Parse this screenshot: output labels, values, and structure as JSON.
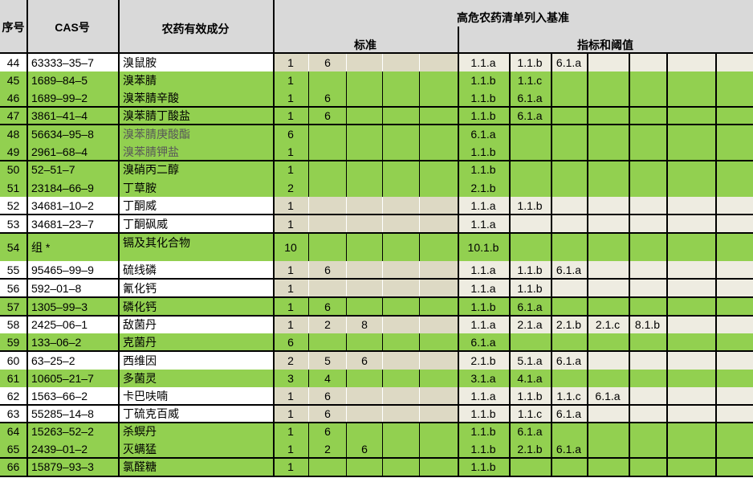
{
  "header": {
    "seq": "序号",
    "cas": "CAS号",
    "name": "农药有效成分",
    "criteria": "高危农药清单列入基准",
    "standards": "标准",
    "indicators": "指标和阈值"
  },
  "colors": {
    "highlight": "#92d050",
    "header": "#d9d9d9",
    "standard_cell": "#ddd9c4",
    "indicator_cell": "#eeece1"
  },
  "rows": [
    {
      "seq": "44",
      "cas": "63333–35–7",
      "name": "溴鼠胺",
      "highlight": false,
      "standards": [
        "1",
        "6",
        "",
        "",
        ""
      ],
      "indicators": [
        "1.1.a",
        "1.1.b",
        "6.1.a",
        "",
        "",
        "",
        ""
      ]
    },
    {
      "seq": "45",
      "cas": "1689–84–5",
      "name": "溴苯腈",
      "highlight": true,
      "standards": [
        "1",
        "",
        "",
        "",
        ""
      ],
      "indicators": [
        "1.1.b",
        "1.1.c",
        "",
        "",
        "",
        "",
        ""
      ]
    },
    {
      "seq": "46",
      "cas": "1689–99–2",
      "name": "溴苯腈辛酸",
      "highlight": true,
      "standards": [
        "1",
        "6",
        "",
        "",
        ""
      ],
      "indicators": [
        "1.1.b",
        "6.1.a",
        "",
        "",
        "",
        "",
        ""
      ]
    },
    {
      "seq": "47",
      "cas": "3861–41–4",
      "name": "溴苯腈丁酸盐",
      "highlight": true,
      "standards": [
        "1",
        "6",
        "",
        "",
        ""
      ],
      "indicators": [
        "1.1.b",
        "6.1.a",
        "",
        "",
        "",
        "",
        ""
      ]
    },
    {
      "seq": "48",
      "cas": "56634–95–8",
      "name": "溴苯腈庚酸酯",
      "highlight": true,
      "standards": [
        "6",
        "",
        "",
        "",
        ""
      ],
      "indicators": [
        "6.1.a",
        "",
        "",
        "",
        "",
        "",
        ""
      ]
    },
    {
      "seq": "49",
      "cas": "2961–68–4",
      "name": "溴苯腈钾盐",
      "highlight": true,
      "standards": [
        "1",
        "",
        "",
        "",
        ""
      ],
      "indicators": [
        "1.1.b",
        "",
        "",
        "",
        "",
        "",
        ""
      ]
    },
    {
      "seq": "50",
      "cas": "52–51–7",
      "name": "溴硝丙二醇",
      "highlight": true,
      "standards": [
        "1",
        "",
        "",
        "",
        ""
      ],
      "indicators": [
        "1.1.b",
        "",
        "",
        "",
        "",
        "",
        ""
      ]
    },
    {
      "seq": "51",
      "cas": "23184–66–9",
      "name": "丁草胺",
      "highlight": true,
      "standards": [
        "2",
        "",
        "",
        "",
        ""
      ],
      "indicators": [
        "2.1.b",
        "",
        "",
        "",
        "",
        "",
        ""
      ]
    },
    {
      "seq": "52",
      "cas": "34681–10–2",
      "name": "丁酮威",
      "highlight": false,
      "standards": [
        "1",
        "",
        "",
        "",
        ""
      ],
      "indicators": [
        "1.1.a",
        "1.1.b",
        "",
        "",
        "",
        "",
        ""
      ]
    },
    {
      "seq": "53",
      "cas": "34681–23–7",
      "name": "丁酮砜威",
      "highlight": false,
      "standards": [
        "1",
        "",
        "",
        "",
        ""
      ],
      "indicators": [
        "1.1.a",
        "",
        "",
        "",
        "",
        "",
        ""
      ]
    },
    {
      "seq": "54",
      "cas": "组 *",
      "name": "镉及其化合物",
      "highlight": true,
      "standards": [
        "10",
        "",
        "",
        "",
        ""
      ],
      "indicators": [
        "10.1.b",
        "",
        "",
        "",
        "",
        "",
        ""
      ]
    },
    {
      "seq": "55",
      "cas": "95465–99–9",
      "name": "硫线磷",
      "highlight": false,
      "standards": [
        "1",
        "6",
        "",
        "",
        ""
      ],
      "indicators": [
        "1.1.a",
        "1.1.b",
        "6.1.a",
        "",
        "",
        "",
        ""
      ]
    },
    {
      "seq": "56",
      "cas": "592–01–8",
      "name": "氰化钙",
      "highlight": false,
      "standards": [
        "1",
        "",
        "",
        "",
        ""
      ],
      "indicators": [
        "1.1.a",
        "1.1.b",
        "",
        "",
        "",
        "",
        ""
      ]
    },
    {
      "seq": "57",
      "cas": "1305–99–3",
      "name": "磷化钙",
      "highlight": true,
      "standards": [
        "1",
        "6",
        "",
        "",
        ""
      ],
      "indicators": [
        "1.1.b",
        "6.1.a",
        "",
        "",
        "",
        "",
        ""
      ]
    },
    {
      "seq": "58",
      "cas": "2425–06–1",
      "name": "敌菌丹",
      "highlight": false,
      "standards": [
        "1",
        "2",
        "8",
        "",
        ""
      ],
      "indicators": [
        "1.1.a",
        "2.1.a",
        "2.1.b",
        "2.1.c",
        "8.1.b",
        "",
        ""
      ]
    },
    {
      "seq": "59",
      "cas": "133–06–2",
      "name": "克菌丹",
      "highlight": true,
      "standards": [
        "6",
        "",
        "",
        "",
        ""
      ],
      "indicators": [
        "6.1.a",
        "",
        "",
        "",
        "",
        "",
        ""
      ]
    },
    {
      "seq": "60",
      "cas": "63–25–2",
      "name": "西维因",
      "highlight": false,
      "standards": [
        "2",
        "5",
        "6",
        "",
        ""
      ],
      "indicators": [
        "2.1.b",
        "5.1.a",
        "6.1.a",
        "",
        "",
        "",
        ""
      ]
    },
    {
      "seq": "61",
      "cas": "10605–21–7",
      "name": "多菌灵",
      "highlight": true,
      "standards": [
        "3",
        "4",
        "",
        "",
        ""
      ],
      "indicators": [
        "3.1.a",
        "4.1.a",
        "",
        "",
        "",
        "",
        ""
      ]
    },
    {
      "seq": "62",
      "cas": "1563–66–2",
      "name": "卡巴呋喃",
      "highlight": false,
      "standards": [
        "1",
        "6",
        "",
        "",
        ""
      ],
      "indicators": [
        "1.1.a",
        "1.1.b",
        "1.1.c",
        "6.1.a",
        "",
        "",
        ""
      ]
    },
    {
      "seq": "63",
      "cas": "55285–14–8",
      "name": "丁硫克百威",
      "highlight": false,
      "standards": [
        "1",
        "6",
        "",
        "",
        ""
      ],
      "indicators": [
        "1.1.b",
        "1.1.c",
        "6.1.a",
        "",
        "",
        "",
        ""
      ]
    },
    {
      "seq": "64",
      "cas": "15263–52–2",
      "name": "杀螟丹",
      "highlight": true,
      "standards": [
        "1",
        "6",
        "",
        "",
        ""
      ],
      "indicators": [
        "1.1.b",
        "6.1.a",
        "",
        "",
        "",
        "",
        ""
      ]
    },
    {
      "seq": "65",
      "cas": "2439–01–2",
      "name": "灭螨猛",
      "highlight": true,
      "standards": [
        "1",
        "2",
        "6",
        "",
        ""
      ],
      "indicators": [
        "1.1.b",
        "2.1.b",
        "6.1.a",
        "",
        "",
        "",
        ""
      ]
    },
    {
      "seq": "66",
      "cas": "15879–93–3",
      "name": "氯醛糖",
      "highlight": true,
      "standards": [
        "1",
        "",
        "",
        "",
        ""
      ],
      "indicators": [
        "1.1.b",
        "",
        "",
        "",
        "",
        "",
        ""
      ]
    }
  ]
}
